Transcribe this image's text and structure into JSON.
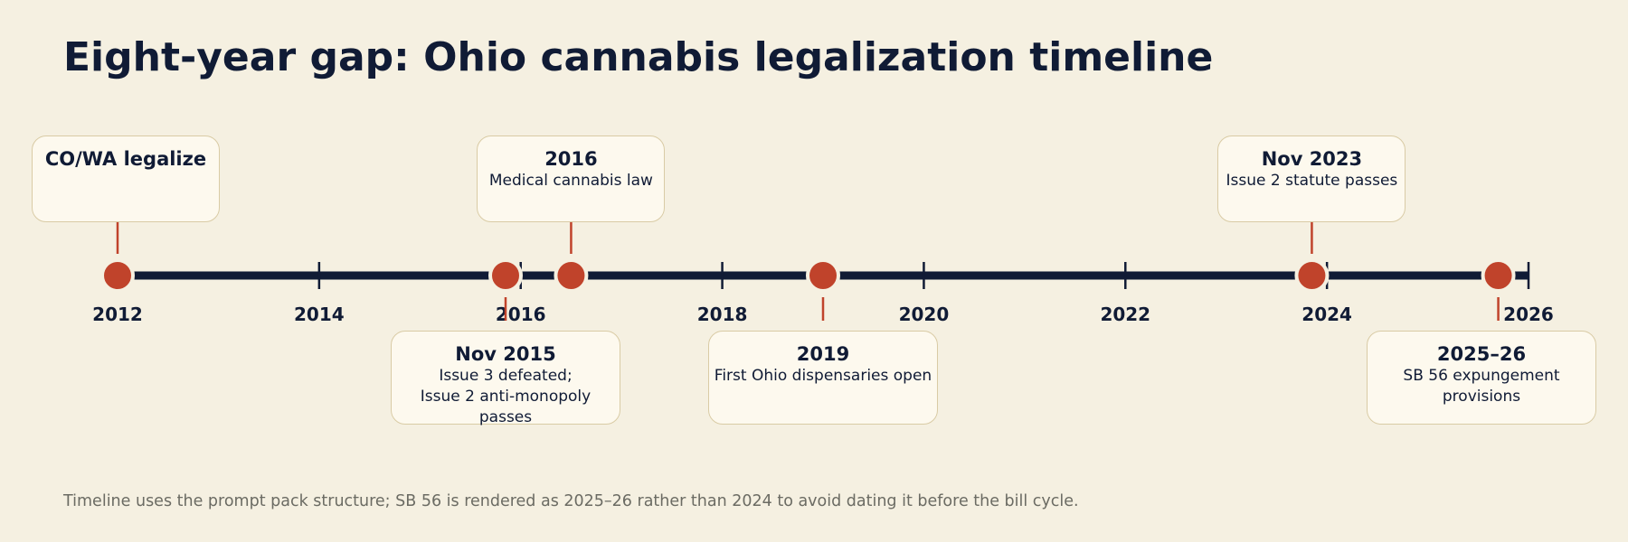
{
  "title": "Eight-year gap: Ohio cannabis legalization timeline",
  "axis": {
    "range": [
      2012,
      2026
    ],
    "ticks": [
      "2012",
      "2014",
      "2016",
      "2018",
      "2020",
      "2022",
      "2024",
      "2026"
    ]
  },
  "events": [
    {
      "label": "",
      "desc": "CO/WA legalize",
      "year": 2012.0,
      "side": "above"
    },
    {
      "label": "Nov 2015",
      "desc": "Issue 3 defeated;\nIssue 2 anti-monopoly passes",
      "year": 2015.85,
      "side": "below"
    },
    {
      "label": "2016",
      "desc": "Medical cannabis law",
      "year": 2016.5,
      "side": "above"
    },
    {
      "label": "2019",
      "desc": "First Ohio dispensaries open",
      "year": 2019.0,
      "side": "below"
    },
    {
      "label": "Nov 2023",
      "desc": "Issue 2 statute passes",
      "year": 2023.85,
      "side": "above"
    },
    {
      "label": "2025–26",
      "desc": "SB 56 expungement provisions",
      "year": 2025.7,
      "side": "below"
    }
  ],
  "note": "Timeline uses the prompt pack structure; SB 56 is rendered as 2025–26 rather than 2024 to avoid dating it before the bill cycle.",
  "colors": {
    "background": "#f5f0e1",
    "axis": "#101b35",
    "marker": "#c0432b",
    "card_fill": "#fdf9ee",
    "card_border": "#d9cba5"
  }
}
